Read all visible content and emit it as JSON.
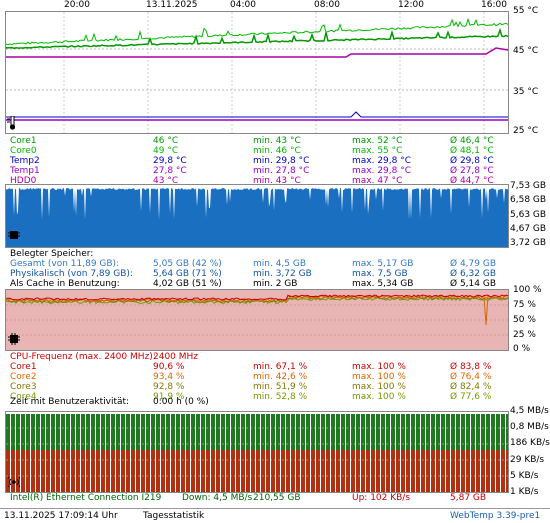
{
  "colors": {
    "core1": "#009900",
    "core0": "#00bb00",
    "temp2": "#0000cc",
    "temp1": "#9900cc",
    "hdd0": "#aa00aa",
    "mem_fill": "#1a6fc1",
    "cpu_bg": "#e8b4b4",
    "net_down": "#1f7a1f",
    "net_up": "#b03010",
    "net_text": "#006600",
    "red_text": "#cc0000"
  },
  "temp_panel": {
    "time_labels": [
      "20:00",
      "13.11.2025",
      "04:00",
      "08:00",
      "12:00",
      "16:00"
    ],
    "y_labels": [
      "55 °C",
      "45 °C",
      "35 °C",
      "25 °C"
    ],
    "thermo_icon": "thermometer-icon",
    "rows": [
      {
        "name": "Core1",
        "value": "46 °C",
        "min": "min. 43 °C",
        "max": "max. 52 °C",
        "avg": "Ø 46,4 °C",
        "color": "#009900"
      },
      {
        "name": "Core0",
        "value": "49 °C",
        "min": "min. 46 °C",
        "max": "max. 55 °C",
        "avg": "Ø 48,1 °C",
        "color": "#00bb00"
      },
      {
        "name": "Temp2",
        "value": "29,8 °C",
        "min": "min. 29,8 °C",
        "max": "max. 29,8 °C",
        "avg": "Ø 29,8 °C",
        "color": "#0000cc"
      },
      {
        "name": "Temp1",
        "value": "27,8 °C",
        "min": "min. 27,8 °C",
        "max": "max. 29,8 °C",
        "avg": "Ø 27,8 °C",
        "color": "#9900cc"
      },
      {
        "name": "HDD0",
        "value": "43 °C",
        "min": "min. 43 °C",
        "max": "max. 47 °C",
        "avg": "Ø 44,7 °C",
        "color": "#aa00aa"
      }
    ]
  },
  "mem_panel": {
    "y_labels": [
      "7,53 GB",
      "6,58 GB",
      "5,63 GB",
      "4,67 GB",
      "3,72 GB"
    ],
    "header": "Belegter Speicher:",
    "chip_icon": "memory-chip-icon",
    "rows": [
      {
        "name": "Gesamt (von 11,89 GB):",
        "value": "5,05 GB (42 %)",
        "min": "min. 4,5 GB",
        "max": "max. 5,17 GB",
        "avg": "Ø 4,79 GB",
        "color": "#3377cc"
      },
      {
        "name": "Physikalisch (von 7,89 GB):",
        "value": "5,64 GB (71 %)",
        "min": "min. 3,72 GB",
        "max": "max. 7,5 GB",
        "avg": "Ø 6,32 GB",
        "color": "#1155aa"
      },
      {
        "name": "Als Cache in Benutzung:",
        "value": "4,02 GB (51 %)",
        "min": "min. 2 GB",
        "max": "max. 5,34 GB",
        "avg": "Ø 5,14 GB",
        "color": "#000000"
      }
    ]
  },
  "cpu_panel": {
    "y_labels": [
      "100 %",
      "75 %",
      "50 %",
      "25 %",
      "0 %"
    ],
    "chip_icon": "cpu-chip-icon",
    "header_label": "CPU-Frequenz (max. 2400 MHz):",
    "header_value": "2400 MHz",
    "rows": [
      {
        "name": "Core1",
        "value": "90,6 %",
        "min": "min. 67,1 %",
        "max": "max. 100 %",
        "avg": "Ø 83,8 %",
        "color": "#cc0000"
      },
      {
        "name": "Core2",
        "value": "93,4 %",
        "min": "min. 42,6 %",
        "max": "max. 100 %",
        "avg": "Ø 76,4 %",
        "color": "#dd6600"
      },
      {
        "name": "Core3",
        "value": "92,8 %",
        "min": "min. 51,9 %",
        "max": "max. 100 %",
        "avg": "Ø 82,4 %",
        "color": "#887700"
      },
      {
        "name": "Core4",
        "value": "91,9 %",
        "min": "min. 52,8 %",
        "max": "max. 100 %",
        "avg": "Ø 77,6 %",
        "color": "#779900"
      }
    ],
    "activity_label": "Zeit mit Benutzeraktivität:",
    "activity_value": "0:00 h (0 %)"
  },
  "net_panel": {
    "y_labels": [
      "4,5 MB/s",
      "0,8 MB/s",
      "186 KB/s",
      "29 KB/s",
      "5 KB/s",
      "1 KB/s"
    ],
    "antenna_icon": "antenna-icon",
    "adapter": "Intel(R) Ethernet Connection I219",
    "down": "Down: 4,5 MB/s",
    "down_total": "210,55 GB",
    "up": "Up: 102 KB/s",
    "up_total": "5,87 GB"
  },
  "status_bar": {
    "datetime": "13.11.2025 17:09:14 Uhr",
    "mode": "Tagesstatistik",
    "version": "WebTemp 3.39-pre1"
  }
}
